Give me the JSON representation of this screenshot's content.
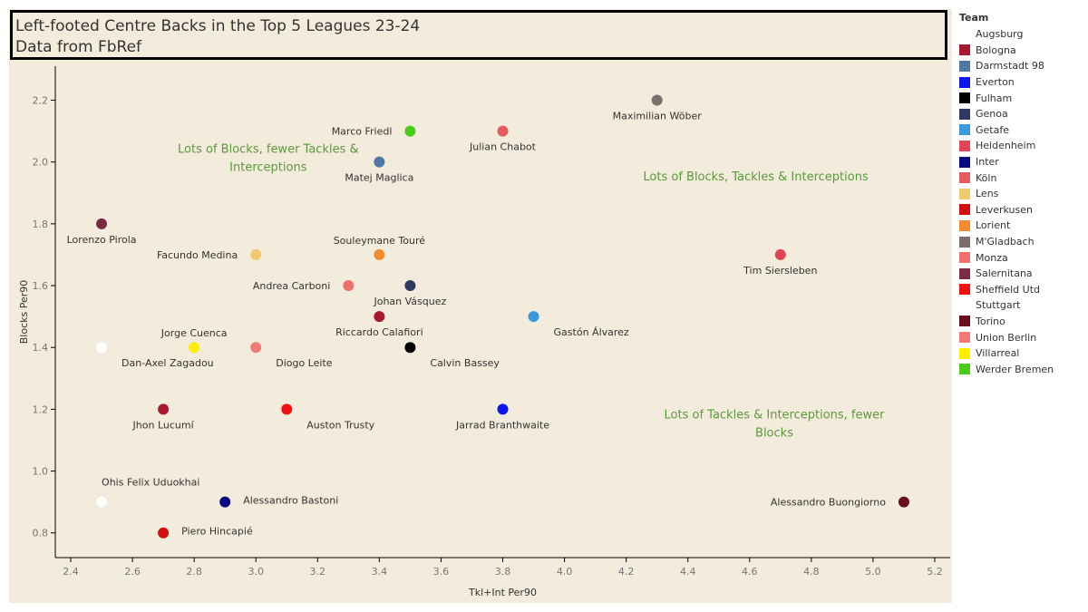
{
  "title": {
    "line1": "Left-footed Centre Backs in the Top 5 Leagues 23-24",
    "line2": "Data from FbRef"
  },
  "legend": {
    "title": "Team",
    "items": [
      {
        "team": "Augsburg",
        "color": "#ffffff"
      },
      {
        "team": "Bologna",
        "color": "#a6192e"
      },
      {
        "team": "Darmstadt 98",
        "color": "#4e79a7"
      },
      {
        "team": "Everton",
        "color": "#0b16f0"
      },
      {
        "team": "Fulham",
        "color": "#000000"
      },
      {
        "team": "Genoa",
        "color": "#2f3a63"
      },
      {
        "team": "Getafe",
        "color": "#3a9ad9"
      },
      {
        "team": "Heidenheim",
        "color": "#e04452"
      },
      {
        "team": "Inter",
        "color": "#0a0a80"
      },
      {
        "team": "Köln",
        "color": "#e45a5f"
      },
      {
        "team": "Lens",
        "color": "#f0c96c"
      },
      {
        "team": "Leverkusen",
        "color": "#d40f0f"
      },
      {
        "team": "Lorient",
        "color": "#f28a30"
      },
      {
        "team": "M'Gladbach",
        "color": "#7a6f6a"
      },
      {
        "team": "Monza",
        "color": "#f26d6d"
      },
      {
        "team": "Salernitana",
        "color": "#7a2a45"
      },
      {
        "team": "Sheffield Utd",
        "color": "#ee1111"
      },
      {
        "team": "Stuttgart",
        "color": "#ffffff"
      },
      {
        "team": "Torino",
        "color": "#6a0f1f"
      },
      {
        "team": "Union Berlin",
        "color": "#f47a7a"
      },
      {
        "team": "Villarreal",
        "color": "#ffee00"
      },
      {
        "team": "Werder Bremen",
        "color": "#4ccc1a"
      }
    ]
  },
  "chart_data": {
    "type": "scatter",
    "title": "Left-footed Centre Backs in the Top 5 Leagues 23-24",
    "subtitle": "Data from FbRef",
    "xlabel": "Tkl+Int Per90",
    "ylabel": "Blocks Per90",
    "xlim": [
      2.35,
      5.25
    ],
    "ylim": [
      0.72,
      2.31
    ],
    "xticks": [
      "2.4",
      "2.6",
      "2.8",
      "3.0",
      "3.2",
      "3.4",
      "3.6",
      "3.8",
      "4.0",
      "4.2",
      "4.4",
      "4.6",
      "4.8",
      "5.0",
      "5.2"
    ],
    "yticks": [
      "0.8",
      "1.0",
      "1.2",
      "1.4",
      "1.6",
      "1.8",
      "2.0",
      "2.2"
    ],
    "grid": false,
    "legend_position": "right",
    "points": [
      {
        "name": "Maximilian Wöber",
        "team": "M'Gladbach",
        "x": 4.3,
        "y": 2.2,
        "label_pos": "below"
      },
      {
        "name": "Marco Friedl",
        "team": "Werder Bremen",
        "x": 3.5,
        "y": 2.1,
        "label_pos": "left"
      },
      {
        "name": "Julian Chabot",
        "team": "Köln",
        "x": 3.8,
        "y": 2.1,
        "label_pos": "below"
      },
      {
        "name": "Matej Maglica",
        "team": "Darmstadt 98",
        "x": 3.4,
        "y": 2.0,
        "label_pos": "below"
      },
      {
        "name": "Lorenzo Pirola",
        "team": "Salernitana",
        "x": 2.5,
        "y": 1.8,
        "label_pos": "below"
      },
      {
        "name": "Facundo Medina",
        "team": "Lens",
        "x": 3.0,
        "y": 1.7,
        "label_pos": "left"
      },
      {
        "name": "Souleymane Touré",
        "team": "Lorient",
        "x": 3.4,
        "y": 1.7,
        "label_pos": "above"
      },
      {
        "name": "Tim Siersleben",
        "team": "Heidenheim",
        "x": 4.7,
        "y": 1.7,
        "label_pos": "below"
      },
      {
        "name": "Andrea Carboni",
        "team": "Monza",
        "x": 3.3,
        "y": 1.6,
        "label_pos": "left"
      },
      {
        "name": "Johan Vásquez",
        "team": "Genoa",
        "x": 3.5,
        "y": 1.6,
        "label_pos": "below"
      },
      {
        "name": "Riccardo Calafiori",
        "team": "Bologna",
        "x": 3.4,
        "y": 1.5,
        "label_pos": "below"
      },
      {
        "name": "Gastón Álvarez",
        "team": "Getafe",
        "x": 3.9,
        "y": 1.5,
        "label_pos": "belowright"
      },
      {
        "name": "Dan-Axel Zagadou",
        "team": "Stuttgart",
        "x": 2.5,
        "y": 1.4,
        "label_pos": "belowright"
      },
      {
        "name": "Jorge Cuenca",
        "team": "Villarreal",
        "x": 2.8,
        "y": 1.4,
        "label_pos": "above"
      },
      {
        "name": "Diogo Leite",
        "team": "Union Berlin",
        "x": 3.0,
        "y": 1.4,
        "label_pos": "belowright"
      },
      {
        "name": "Calvin Bassey",
        "team": "Fulham",
        "x": 3.5,
        "y": 1.4,
        "label_pos": "belowright"
      },
      {
        "name": "Jhon Lucumí",
        "team": "Bologna",
        "x": 2.7,
        "y": 1.2,
        "label_pos": "below"
      },
      {
        "name": "Auston Trusty",
        "team": "Sheffield Utd",
        "x": 3.1,
        "y": 1.2,
        "label_pos": "belowright"
      },
      {
        "name": "Jarrad Branthwaite",
        "team": "Everton",
        "x": 3.8,
        "y": 1.2,
        "label_pos": "below"
      },
      {
        "name": "Ohis Felix Uduokhai",
        "team": "Augsburg",
        "x": 2.5,
        "y": 0.9,
        "label_pos": "aboveright"
      },
      {
        "name": "Alessandro Bastoni",
        "team": "Inter",
        "x": 2.9,
        "y": 0.9,
        "label_pos": "right"
      },
      {
        "name": "Alessandro Buongiorno",
        "team": "Torino",
        "x": 5.1,
        "y": 0.9,
        "label_pos": "left"
      },
      {
        "name": "Piero Hincapié",
        "team": "Leverkusen",
        "x": 2.7,
        "y": 0.8,
        "label_pos": "right"
      }
    ],
    "annotations": [
      {
        "lines": [
          "Lots of Blocks, fewer Tackles &",
          "Interceptions"
        ],
        "x": 3.04,
        "y": 2.03,
        "color": "#5a9a3c"
      },
      {
        "lines": [
          "Lots of Blocks, Tackles & Interceptions"
        ],
        "x": 4.62,
        "y": 1.94,
        "color": "#5a9a3c"
      },
      {
        "lines": [
          "Lots of Tackles & Interceptions, fewer",
          "Blocks"
        ],
        "x": 4.68,
        "y": 1.17,
        "color": "#5a9a3c"
      }
    ]
  }
}
